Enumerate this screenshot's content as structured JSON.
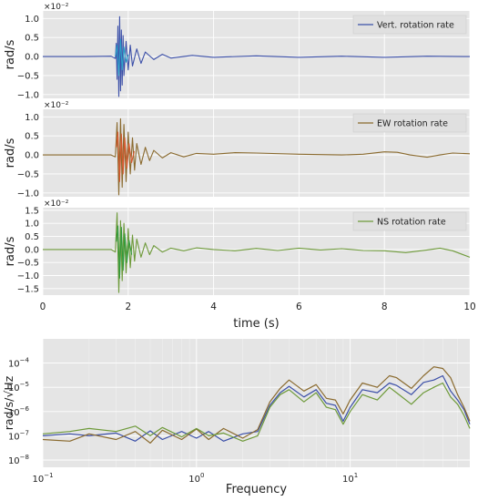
{
  "chart_data": [
    {
      "type": "line",
      "xlim": [
        0,
        10
      ],
      "ylim": [
        -1.1,
        1.2
      ],
      "yticks": [
        "−1.0",
        "−0.5",
        "0.0",
        "0.5",
        "1.0"
      ],
      "yticks_values": [
        -1.0,
        -0.5,
        0.0,
        0.5,
        1.0
      ],
      "scale_label": "×10⁻²",
      "ylabel": "rad/s",
      "grid": true,
      "legend_position": "top-right",
      "series": [
        {
          "name": "Vert. rotation rate",
          "color": "#3b4fa8",
          "x": [
            0.0,
            1.0,
            1.6,
            1.7,
            1.72,
            1.74,
            1.76,
            1.78,
            1.8,
            1.82,
            1.84,
            1.86,
            1.88,
            1.9,
            1.95,
            2.0,
            2.05,
            2.1,
            2.2,
            2.3,
            2.4,
            2.6,
            2.8,
            3.0,
            3.5,
            4.0,
            5.0,
            6.0,
            7.0,
            8.0,
            9.0,
            10.0
          ],
          "y": [
            0.0,
            0.0,
            0.01,
            -0.05,
            0.35,
            -0.6,
            0.8,
            -1.05,
            1.05,
            -0.9,
            0.7,
            -0.75,
            0.55,
            -0.5,
            0.4,
            -0.35,
            0.3,
            -0.25,
            0.2,
            -0.18,
            0.12,
            -0.08,
            0.06,
            -0.04,
            0.03,
            -0.02,
            0.02,
            -0.02,
            0.01,
            -0.02,
            0.01,
            0.0
          ]
        },
        {
          "name": "",
          "color": "#2fa3c9",
          "x": [
            1.7,
            1.74,
            1.78,
            1.82,
            1.86,
            1.9,
            1.95,
            2.0
          ],
          "y": [
            0.0,
            0.3,
            -0.5,
            0.45,
            -0.35,
            0.25,
            -0.15,
            0.05
          ]
        }
      ]
    },
    {
      "type": "line",
      "xlim": [
        0,
        10
      ],
      "ylim": [
        -1.1,
        1.2
      ],
      "yticks": [
        "−1.0",
        "−0.5",
        "0.0",
        "0.5",
        "1.0"
      ],
      "yticks_values": [
        -1.0,
        -0.5,
        0.0,
        0.5,
        1.0
      ],
      "scale_label": "×10⁻²",
      "ylabel": "rad/s",
      "grid": true,
      "legend_position": "top-right",
      "series": [
        {
          "name": "EW rotation rate",
          "color": "#8a6a2e",
          "x": [
            0.0,
            1.0,
            1.6,
            1.7,
            1.74,
            1.78,
            1.82,
            1.86,
            1.9,
            1.95,
            2.0,
            2.05,
            2.1,
            2.15,
            2.2,
            2.3,
            2.4,
            2.5,
            2.6,
            2.8,
            3.0,
            3.3,
            3.6,
            4.0,
            4.5,
            5.0,
            6.0,
            7.0,
            7.5,
            8.0,
            8.3,
            8.6,
            9.0,
            9.3,
            9.6,
            10.0
          ],
          "y": [
            0.0,
            0.0,
            0.0,
            -0.05,
            0.85,
            -1.05,
            0.95,
            -0.85,
            0.8,
            -0.7,
            0.6,
            -0.5,
            0.45,
            -0.4,
            0.3,
            -0.25,
            0.2,
            -0.15,
            0.12,
            -0.08,
            0.06,
            -0.05,
            0.04,
            0.02,
            0.06,
            0.05,
            0.02,
            0.0,
            0.02,
            0.08,
            0.07,
            0.0,
            -0.06,
            0.0,
            0.05,
            0.03
          ]
        },
        {
          "name": "",
          "color": "#d4572c",
          "x": [
            1.72,
            1.76,
            1.8,
            1.84,
            1.88,
            1.92,
            1.97,
            2.02,
            2.08,
            2.14
          ],
          "y": [
            0.2,
            0.6,
            -0.7,
            0.55,
            -0.5,
            0.45,
            -0.35,
            0.3,
            -0.2,
            0.1
          ]
        }
      ]
    },
    {
      "type": "line",
      "xlim": [
        0,
        10
      ],
      "ylim": [
        -1.75,
        1.6
      ],
      "yticks": [
        "−1.5",
        "−1.0",
        "−0.5",
        "0.0",
        "0.5",
        "1.0",
        "1.5"
      ],
      "yticks_values": [
        -1.5,
        -1.0,
        -0.5,
        0.0,
        0.5,
        1.0,
        1.5
      ],
      "scale_label": "×10⁻²",
      "ylabel": "rad/s",
      "grid": true,
      "legend_position": "top-right",
      "series": [
        {
          "name": "NS rotation rate",
          "color": "#6e9a3a",
          "x": [
            0.0,
            1.0,
            1.6,
            1.7,
            1.74,
            1.78,
            1.82,
            1.86,
            1.9,
            1.95,
            2.0,
            2.05,
            2.1,
            2.15,
            2.2,
            2.3,
            2.4,
            2.5,
            2.6,
            2.8,
            3.0,
            3.3,
            3.6,
            4.0,
            4.5,
            5.0,
            5.5,
            6.0,
            6.5,
            7.0,
            7.5,
            8.0,
            8.5,
            9.0,
            9.3,
            9.6,
            10.0
          ],
          "y": [
            0.0,
            0.0,
            0.0,
            -0.1,
            1.4,
            -1.65,
            1.1,
            -1.2,
            1.0,
            -0.9,
            0.8,
            -0.7,
            0.55,
            -0.45,
            0.4,
            -0.3,
            0.25,
            -0.2,
            0.15,
            -0.1,
            0.05,
            -0.05,
            0.06,
            0.0,
            -0.05,
            0.04,
            -0.04,
            0.05,
            -0.02,
            0.03,
            -0.04,
            -0.05,
            -0.12,
            -0.02,
            0.05,
            -0.05,
            -0.3
          ]
        },
        {
          "name": "",
          "color": "#2f9a3a",
          "x": [
            1.72,
            1.76,
            1.8,
            1.84,
            1.88,
            1.92,
            1.97,
            2.02,
            2.08
          ],
          "y": [
            0.3,
            0.9,
            -1.1,
            0.85,
            -0.8,
            0.6,
            -0.5,
            0.35,
            -0.2
          ]
        }
      ]
    },
    {
      "type": "line",
      "xscale": "log",
      "yscale": "log",
      "xlim": [
        0.1,
        60
      ],
      "ylim": [
        5e-09,
        0.001
      ],
      "xticks": [
        "10",
        "10",
        "10"
      ],
      "xticks_exponents": [
        "−1",
        "0",
        "1"
      ],
      "xticks_values": [
        0.1,
        1,
        10
      ],
      "yticks": [
        "10",
        "10",
        "10",
        "10",
        "10"
      ],
      "yticks_exponents": [
        "−8",
        "−7",
        "−6",
        "−5",
        "−4"
      ],
      "yticks_values": [
        1e-08,
        1e-07,
        1e-06,
        1e-05,
        0.0001
      ],
      "xlabel": "Frequency",
      "ylabel": "rad/s/√Hz",
      "grid": true,
      "series": [
        {
          "name": "",
          "color": "#3b4fa8",
          "x": [
            0.1,
            0.15,
            0.2,
            0.3,
            0.4,
            0.5,
            0.6,
            0.8,
            1.0,
            1.2,
            1.5,
            2.0,
            2.5,
            3.0,
            3.5,
            4.0,
            5.0,
            6.0,
            7.0,
            8.0,
            9.0,
            10.0,
            12.0,
            15.0,
            18.0,
            20.0,
            25.0,
            30.0,
            35.0,
            40.0,
            45.0,
            50.0,
            55.0,
            60.0
          ],
          "y": [
            1e-07,
            1.2e-07,
            1e-07,
            1.3e-07,
            6e-08,
            1.6e-07,
            7e-08,
            1.5e-07,
            8e-08,
            1.5e-07,
            6e-08,
            1.2e-07,
            1.5e-07,
            1.8e-06,
            6e-06,
            1.1e-05,
            4e-06,
            8e-06,
            2.2e-06,
            1.8e-06,
            4e-07,
            1.5e-06,
            8e-06,
            6e-06,
            1.5e-05,
            1.2e-05,
            5e-06,
            1.6e-05,
            2e-05,
            3e-05,
            7e-06,
            3e-06,
            1.2e-06,
            3e-07
          ]
        },
        {
          "name": "",
          "color": "#8a6a2e",
          "x": [
            0.1,
            0.15,
            0.2,
            0.3,
            0.4,
            0.5,
            0.6,
            0.8,
            1.0,
            1.2,
            1.5,
            2.0,
            2.5,
            3.0,
            3.5,
            4.0,
            5.0,
            6.0,
            7.0,
            8.0,
            9.0,
            10.0,
            12.0,
            15.0,
            18.0,
            20.0,
            25.0,
            30.0,
            35.0,
            40.0,
            45.0,
            50.0,
            55.0,
            60.0
          ],
          "y": [
            7e-08,
            6e-08,
            1.2e-07,
            7e-08,
            1.5e-07,
            5e-08,
            1.7e-07,
            7e-08,
            1.9e-07,
            7e-08,
            2e-07,
            8e-08,
            1.8e-07,
            2.5e-06,
            9e-06,
            2e-05,
            7e-06,
            1.3e-05,
            3.5e-06,
            3e-06,
            8e-07,
            3e-06,
            1.5e-05,
            1e-05,
            3e-05,
            2.5e-05,
            9e-06,
            3e-05,
            7e-05,
            6e-05,
            2.5e-05,
            5e-06,
            1.5e-06,
            4e-07
          ]
        },
        {
          "name": "",
          "color": "#6e9a3a",
          "x": [
            0.1,
            0.15,
            0.2,
            0.3,
            0.4,
            0.5,
            0.6,
            0.8,
            1.0,
            1.2,
            1.5,
            2.0,
            2.5,
            3.0,
            3.5,
            4.0,
            5.0,
            6.0,
            7.0,
            8.0,
            9.0,
            10.0,
            12.0,
            15.0,
            18.0,
            20.0,
            25.0,
            30.0,
            35.0,
            40.0,
            45.0,
            50.0,
            55.0,
            60.0
          ],
          "y": [
            1.2e-07,
            1.5e-07,
            2e-07,
            1.5e-07,
            2.5e-07,
            1e-07,
            2.2e-07,
            9e-08,
            2e-07,
            1e-07,
            1.3e-07,
            6e-08,
            1e-07,
            1.5e-06,
            5e-06,
            8e-06,
            2.5e-06,
            6e-06,
            1.5e-06,
            1.2e-06,
            3e-07,
            1e-06,
            5e-06,
            3e-06,
            1e-05,
            6e-06,
            2e-06,
            6e-06,
            1e-05,
            1.5e-05,
            4e-06,
            2e-06,
            7e-07,
            2e-07
          ]
        }
      ]
    }
  ]
}
